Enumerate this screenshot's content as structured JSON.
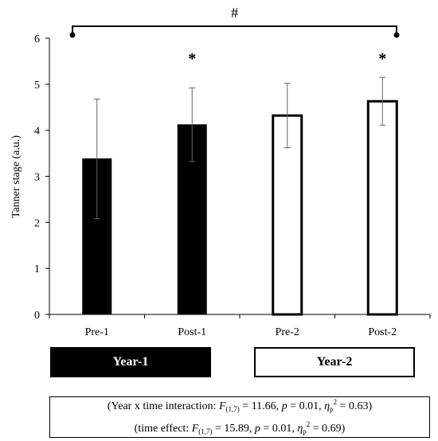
{
  "chart_data": {
    "type": "bar",
    "ylabel": "Tanner stage (a.u.)",
    "ylim": [
      0,
      6
    ],
    "yticks": [
      "0",
      "1",
      "2",
      "3",
      "4",
      "5",
      "6"
    ],
    "categories": [
      "Pre-1",
      "Post-1",
      "Pre-2",
      "Post-2"
    ],
    "values": [
      3.38,
      4.12,
      4.32,
      4.63
    ],
    "errors": [
      1.3,
      0.8,
      0.7,
      0.52
    ],
    "fill": [
      "#000000",
      "#000000",
      "#ffffff",
      "#ffffff"
    ],
    "markers": [
      "",
      "*",
      "",
      "*"
    ],
    "bracket_label": "#",
    "groups": [
      {
        "label": "Year-1",
        "fill": "#000000"
      },
      {
        "label": "Year-2",
        "fill": "#ffffff"
      }
    ]
  },
  "stats": {
    "line1": {
      "prefix": "(Year x time interaction: ",
      "f": "F",
      "f_sub": "(1,7)",
      "f_val": " = 11.66, ",
      "p": "p",
      "p_val": " = 0.01, ",
      "eta": "η",
      "eta_sub": "p",
      "eta_sup": "2",
      "eta_val": " = 0.63)"
    },
    "line2": {
      "prefix": "(time effect: ",
      "f": "F",
      "f_sub": "(1,7)",
      "f_val": " = 15.89, ",
      "p": "p",
      "p_val": " = 0.01, ",
      "eta": "η",
      "eta_sub": "p",
      "eta_sup": "2",
      "eta_val": " = 0.69)"
    }
  }
}
